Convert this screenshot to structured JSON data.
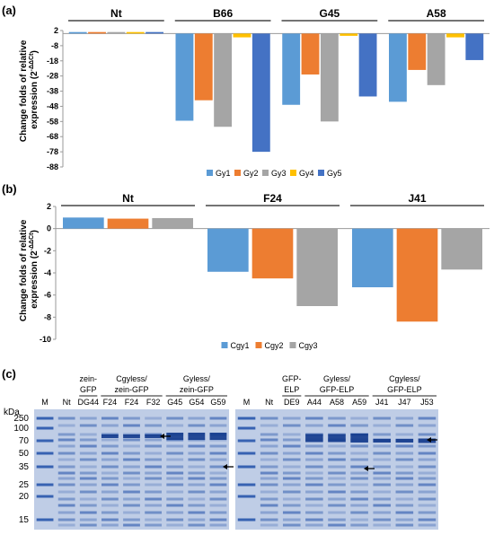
{
  "panels": {
    "a": {
      "label": "(a)"
    },
    "b": {
      "label": "(b)"
    },
    "c": {
      "label": "(c)"
    }
  },
  "colors": {
    "s1": "#5b9bd5",
    "s2": "#ed7d31",
    "s3": "#a5a5a5",
    "s4": "#ffc000",
    "s5": "#4472c4",
    "gel_bg": "#bfcde6",
    "band": "#1f4fa8"
  },
  "chart_data": [
    {
      "type": "bar",
      "panel": "a",
      "groups": [
        "Nt",
        "B66",
        "G45",
        "A58"
      ],
      "ylabel_line1": "Change folds of relative",
      "ylabel_line2": "expression (2",
      "ylabel_sup": "-ΔΔCt",
      "ylabel_end": ")",
      "ylim": [
        -88,
        2
      ],
      "yticks": [
        2,
        -8,
        -18,
        -28,
        -38,
        -48,
        -58,
        -68,
        -78,
        -88
      ],
      "grid": false,
      "legend_position": "bottom",
      "series": [
        {
          "name": "Gy1",
          "color": "#5b9bd5",
          "values": [
            1,
            -57.5,
            -47,
            -45
          ]
        },
        {
          "name": "Gy2",
          "color": "#ed7d31",
          "values": [
            1,
            -44,
            -27,
            -24
          ]
        },
        {
          "name": "Gy3",
          "color": "#a5a5a5",
          "values": [
            1,
            -61.5,
            -58,
            -34
          ]
        },
        {
          "name": "Gy4",
          "color": "#ffc000",
          "values": [
            1,
            -2.5,
            -1.5,
            -2.5
          ]
        },
        {
          "name": "Gy5",
          "color": "#4472c4",
          "values": [
            1,
            -78,
            -41.5,
            -17.5
          ]
        }
      ]
    },
    {
      "type": "bar",
      "panel": "b",
      "groups": [
        "Nt",
        "F24",
        "J41"
      ],
      "ylabel_line1": "Change folds of relative",
      "ylabel_line2": "expression (2",
      "ylabel_sup": "-ΔΔCt",
      "ylabel_end": ")",
      "ylim": [
        -10,
        2
      ],
      "yticks": [
        2,
        0,
        -2,
        -4,
        -6,
        -8,
        -10
      ],
      "grid": false,
      "legend_position": "bottom",
      "series": [
        {
          "name": "Cgy1",
          "color": "#5b9bd5",
          "values": [
            1,
            -3.9,
            -5.3
          ]
        },
        {
          "name": "Cgy2",
          "color": "#ed7d31",
          "values": [
            0.9,
            -4.5,
            -8.4
          ]
        },
        {
          "name": "Cgy3",
          "color": "#a5a5a5",
          "values": [
            0.95,
            -7,
            -3.7
          ]
        }
      ]
    }
  ],
  "gel": {
    "kda_label": "kDa",
    "markers": [
      "250",
      "100",
      "70",
      "50",
      "35",
      "25",
      "20",
      "15"
    ],
    "marker_values": [
      250,
      100,
      70,
      50,
      35,
      25,
      20,
      15
    ],
    "left": {
      "lanes": [
        "M",
        "Nt",
        "DG44",
        "F24",
        "F24",
        "F32",
        "G45",
        "G54",
        "G59"
      ],
      "headers": [
        {
          "line1": "zein-",
          "line2": "GFP"
        },
        {
          "line1": "Cgyless/",
          "line2": "zein-GFP"
        },
        {
          "line1": "Gyless/",
          "line2": "zein-GFP"
        }
      ]
    },
    "right": {
      "lanes": [
        "M",
        "Nt",
        "DE9",
        "A44",
        "A58",
        "A59",
        "J41",
        "J47",
        "J53"
      ],
      "headers": [
        {
          "line1": "GFP-",
          "line2": "ELP"
        },
        {
          "line1": "Gyless/",
          "line2": "GFP-ELP"
        },
        {
          "line1": "Cgyless/",
          "line2": "GFP-ELP"
        }
      ]
    }
  }
}
